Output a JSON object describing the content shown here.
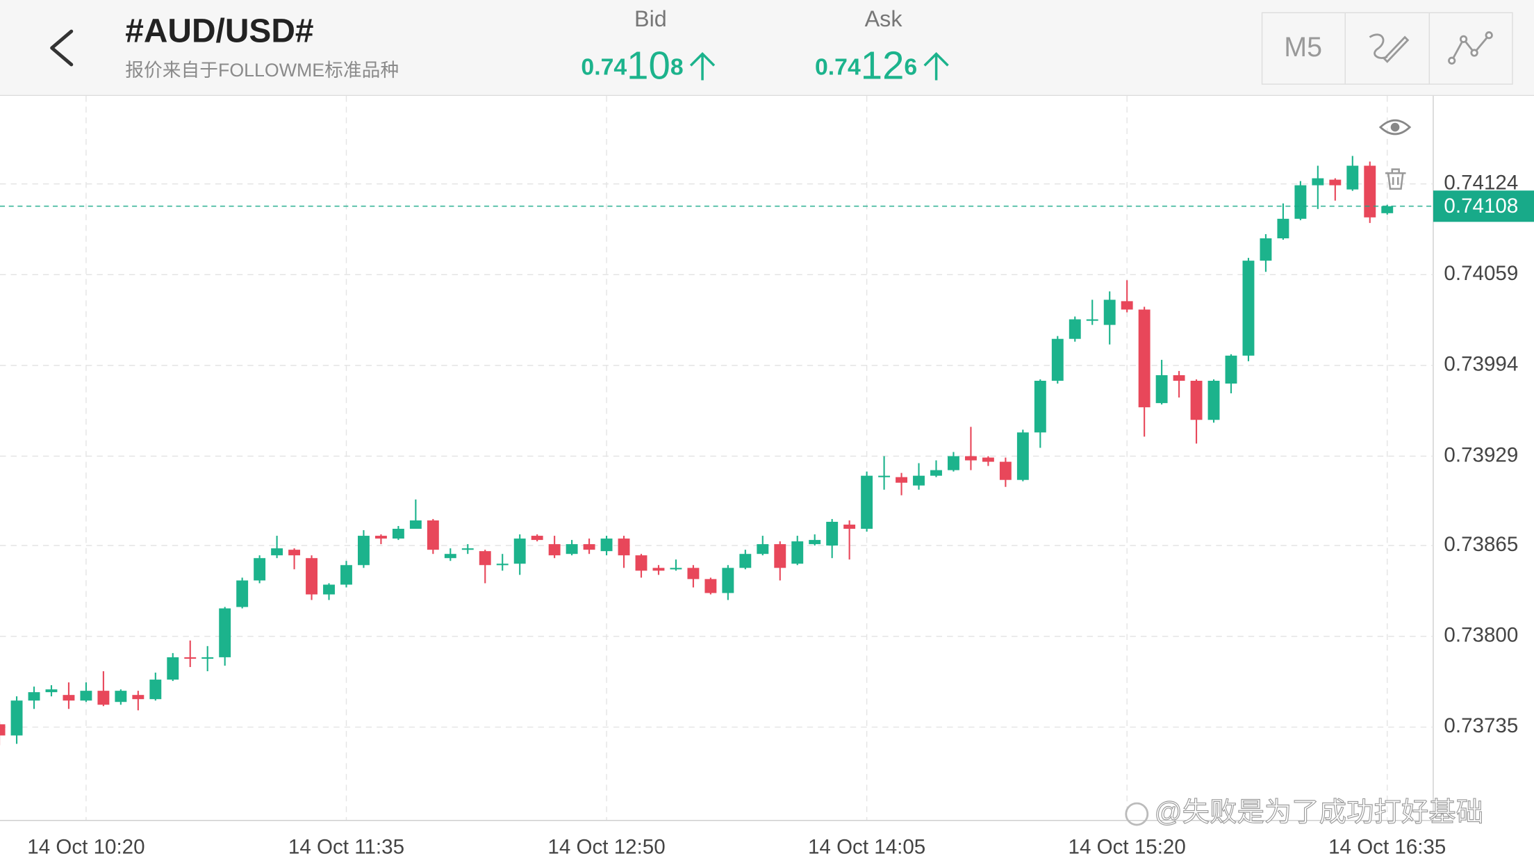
{
  "header": {
    "title": "#AUD/USD#",
    "subtitle": "报价来自于FOLLOWME标准品种",
    "bid": {
      "label": "Bid",
      "price_parts": [
        "0.74",
        "10",
        "8"
      ]
    },
    "ask": {
      "label": "Ask",
      "price_parts": [
        "0.74",
        "12",
        "6"
      ]
    },
    "timeframe": "M5"
  },
  "watermark": "@失败是为了成功打好基础",
  "chart_data": {
    "type": "candlestick",
    "categories": [
      null,
      null,
      null,
      null,
      null,
      "14 Oct 10:20",
      null,
      null,
      null,
      null,
      null,
      null,
      null,
      null,
      null,
      null,
      null,
      null,
      null,
      null,
      "14 Oct 11:35",
      null,
      null,
      null,
      null,
      null,
      null,
      null,
      null,
      null,
      null,
      null,
      null,
      null,
      null,
      "14 Oct 12:50",
      null,
      null,
      null,
      null,
      null,
      null,
      null,
      null,
      null,
      null,
      null,
      null,
      null,
      null,
      "14 Oct 14:05",
      null,
      null,
      null,
      null,
      null,
      null,
      null,
      null,
      null,
      null,
      null,
      null,
      null,
      null,
      "14 Oct 15:20",
      null,
      null,
      null,
      null,
      null,
      null,
      null,
      null,
      null,
      null,
      null,
      null,
      null,
      null,
      "14 Oct 16:35"
    ],
    "open": [
      0.73737,
      0.73729,
      0.73754,
      0.7376,
      0.73758,
      0.73754,
      0.73761,
      0.73753,
      0.73758,
      0.73755,
      0.73769,
      0.73785,
      0.73784,
      0.73785,
      0.73821,
      0.7384,
      0.73858,
      0.73862,
      0.73856,
      0.7383,
      0.73837,
      0.73851,
      0.73872,
      0.7387,
      0.73877,
      0.73883,
      0.73856,
      0.73862,
      0.73861,
      0.73851,
      0.73852,
      0.73872,
      0.73866,
      0.73859,
      0.73866,
      0.73861,
      0.7387,
      0.73858,
      0.73849,
      0.73849,
      0.73849,
      0.73841,
      0.73831,
      0.73849,
      0.73859,
      0.73866,
      0.73852,
      0.73866,
      0.73865,
      0.7388,
      0.73877,
      0.73915,
      0.73914,
      0.73908,
      0.73915,
      0.73919,
      0.73929,
      0.73928,
      0.73925,
      0.73912,
      0.73946,
      0.73983,
      0.74013,
      0.74026,
      0.74023,
      0.7404,
      0.74034,
      0.73967,
      0.73987,
      0.73983,
      0.73955,
      0.73981,
      0.74001,
      0.74069,
      0.74085,
      0.74099,
      0.74123,
      0.74127,
      0.7412,
      0.74137,
      0.74103
    ],
    "high": [
      0.73739,
      0.73757,
      0.73764,
      0.73765,
      0.73767,
      0.73767,
      0.73775,
      0.73762,
      0.73761,
      0.73774,
      0.73788,
      0.73797,
      0.73793,
      0.73821,
      0.73842,
      0.73858,
      0.73872,
      0.73863,
      0.73858,
      0.73838,
      0.73854,
      0.73876,
      0.73873,
      0.73879,
      0.73898,
      0.73884,
      0.73863,
      0.73866,
      0.73862,
      0.73859,
      0.73873,
      0.73873,
      0.73872,
      0.73869,
      0.7387,
      0.73872,
      0.73872,
      0.73859,
      0.73851,
      0.73855,
      0.73851,
      0.73842,
      0.73851,
      0.73862,
      0.73872,
      0.73868,
      0.73872,
      0.73873,
      0.73884,
      0.73883,
      0.73918,
      0.73929,
      0.73917,
      0.73924,
      0.73926,
      0.73932,
      0.7395,
      0.73929,
      0.73928,
      0.73948,
      0.73984,
      0.74015,
      0.74029,
      0.74041,
      0.74047,
      0.74055,
      0.74036,
      0.73998,
      0.7399,
      0.73984,
      0.73984,
      0.74002,
      0.74071,
      0.74088,
      0.7411,
      0.74126,
      0.74137,
      0.74128,
      0.74144,
      0.7414,
      0.74109
    ],
    "low": [
      0.73722,
      0.73723,
      0.73748,
      0.73757,
      0.73748,
      0.73753,
      0.7375,
      0.73751,
      0.73747,
      0.73754,
      0.73768,
      0.73778,
      0.73775,
      0.73779,
      0.7382,
      0.73838,
      0.73856,
      0.73848,
      0.73826,
      0.73826,
      0.73835,
      0.73849,
      0.73866,
      0.73869,
      0.73877,
      0.73859,
      0.73854,
      0.73859,
      0.73838,
      0.73847,
      0.73844,
      0.73868,
      0.73856,
      0.73858,
      0.73859,
      0.73858,
      0.73849,
      0.73842,
      0.73844,
      0.73847,
      0.73835,
      0.7383,
      0.73826,
      0.73848,
      0.73858,
      0.7384,
      0.73851,
      0.73865,
      0.73856,
      0.73855,
      0.73875,
      0.73905,
      0.73901,
      0.73905,
      0.73914,
      0.73918,
      0.73919,
      0.73922,
      0.73907,
      0.73911,
      0.73935,
      0.73981,
      0.74011,
      0.74023,
      0.74009,
      0.74032,
      0.73943,
      0.73966,
      0.73971,
      0.73938,
      0.73953,
      0.73974,
      0.73997,
      0.74061,
      0.74084,
      0.74098,
      0.74106,
      0.74112,
      0.74119,
      0.74096,
      0.74102
    ],
    "close": [
      0.73729,
      0.73754,
      0.7376,
      0.73762,
      0.73754,
      0.73761,
      0.73751,
      0.73761,
      0.73755,
      0.73769,
      0.73785,
      0.73784,
      0.73785,
      0.7382,
      0.7384,
      0.73856,
      0.73863,
      0.73858,
      0.7383,
      0.73837,
      0.73851,
      0.73872,
      0.7387,
      0.73877,
      0.73883,
      0.73862,
      0.73859,
      0.73863,
      0.73851,
      0.73852,
      0.7387,
      0.73869,
      0.73858,
      0.73866,
      0.73862,
      0.7387,
      0.73858,
      0.73847,
      0.73847,
      0.73849,
      0.73841,
      0.73831,
      0.73849,
      0.73859,
      0.73866,
      0.73849,
      0.73868,
      0.73869,
      0.73882,
      0.73877,
      0.73915,
      0.73915,
      0.7391,
      0.73915,
      0.73919,
      0.73929,
      0.73926,
      0.73925,
      0.73912,
      0.73946,
      0.73983,
      0.74013,
      0.74027,
      0.74027,
      0.74041,
      0.74034,
      0.73964,
      0.73987,
      0.73983,
      0.73955,
      0.73983,
      0.74001,
      0.74069,
      0.74085,
      0.74099,
      0.74123,
      0.74128,
      0.74123,
      0.74137,
      0.741,
      0.74108
    ],
    "up_color": "#1cb38c",
    "down_color": "#e8475a",
    "last_price": 0.74108,
    "last_price_color": "#18aa89",
    "ylim": [
      0.736685,
      0.74187
    ],
    "yticks": [
      0.74124,
      0.74059,
      0.73994,
      0.73929,
      0.73865,
      {
        "value": 0.738,
        "label": "0.73800"
      },
      0.73735
    ],
    "grid": true
  }
}
